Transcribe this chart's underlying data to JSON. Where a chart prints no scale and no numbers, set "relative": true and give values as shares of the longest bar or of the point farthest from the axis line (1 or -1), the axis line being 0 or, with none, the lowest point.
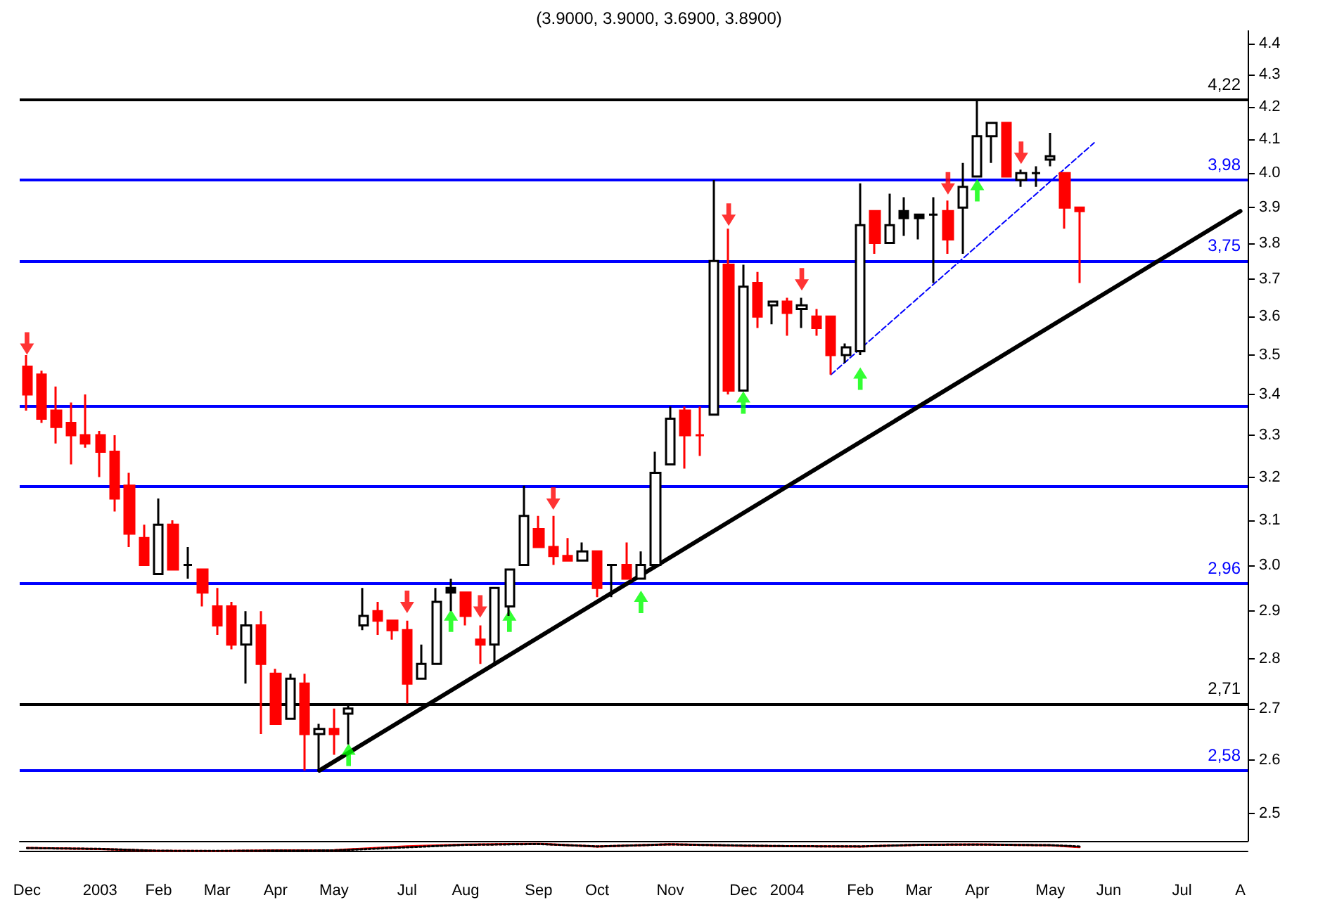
{
  "chart_data": [
    {
      "type": "candlestick",
      "title": "(3.9000, 3.9000, 3.6900, 3.8900)",
      "colors": [
        "#ff0000",
        "#ff0000",
        "#ff0000",
        "#ff0000",
        "#ff0000",
        "#ff0000",
        "#ff0000",
        "#ff0000",
        "#ff0000",
        "#ffffff",
        "#ff0000",
        "#000000",
        "#ff0000",
        "#ff0000",
        "#ff0000",
        "#ffffff",
        "#ff0000",
        "#ff0000",
        "#ffffff",
        "#ff0000",
        "#ffffff",
        "#ff0000",
        "#ffffff",
        "#ffffff",
        "#ff0000",
        "#ff0000",
        "#ff0000",
        "#ffffff",
        "#ffffff",
        "#000000",
        "#ff0000",
        "#ff0000",
        "#ffffff",
        "#ffffff",
        "#ffffff",
        "#ff0000",
        "#ff0000",
        "#ff0000",
        "#ffffff",
        "#ff0000",
        "#000000",
        "#ff0000",
        "#ffffff",
        "#ffffff",
        "#ffffff",
        "#ff0000",
        "#ff0000",
        "#ffffff",
        "#ff0000",
        "#ffffff",
        "#ff0000",
        "#ffffff",
        "#ff0000",
        "#ffffff",
        "#ff0000",
        "#ff0000",
        "#ffffff",
        "#ffffff",
        "#ff0000",
        "#ffffff",
        "#000000",
        "#000000",
        "#000000",
        "#ff0000",
        "#ffffff",
        "#ffffff",
        "#ffffff",
        "#ff0000",
        "#ffffff",
        "#000000",
        "#ffffff",
        "#ff0000",
        "#ff0000",
        null,
        null,
        null,
        null,
        null,
        null,
        null,
        null,
        null,
        null,
        null
      ],
      "categories": [
        "Dec",
        null,
        null,
        null,
        null,
        "2003",
        null,
        null,
        null,
        "Feb",
        null,
        null,
        null,
        "Mar",
        null,
        null,
        null,
        "Apr",
        null,
        null,
        null,
        "May",
        null,
        null,
        null,
        null,
        "Jul",
        null,
        null,
        null,
        "Aug",
        null,
        null,
        null,
        null,
        "Sep",
        null,
        null,
        null,
        "Oct",
        null,
        null,
        null,
        null,
        "Nov",
        null,
        null,
        null,
        null,
        "Dec",
        null,
        null,
        "2004",
        null,
        null,
        null,
        null,
        "Feb",
        null,
        null,
        null,
        "Mar",
        null,
        null,
        null,
        "Apr",
        null,
        null,
        null,
        null,
        "May",
        null,
        null,
        null,
        "Jun",
        null,
        null,
        null,
        null,
        "Jul",
        null,
        null,
        null,
        "A"
      ],
      "ohlc": [
        [
          3.47,
          3.5,
          3.36,
          3.4
        ],
        [
          3.45,
          3.46,
          3.33,
          3.34
        ],
        [
          3.36,
          3.42,
          3.28,
          3.32
        ],
        [
          3.33,
          3.38,
          3.23,
          3.3
        ],
        [
          3.3,
          3.4,
          3.27,
          3.28
        ],
        [
          3.3,
          3.31,
          3.2,
          3.26
        ],
        [
          3.26,
          3.3,
          3.12,
          3.15
        ],
        [
          3.18,
          3.21,
          3.04,
          3.07
        ],
        [
          3.06,
          3.09,
          3.0,
          3.0
        ],
        [
          2.98,
          3.15,
          2.98,
          3.09
        ],
        [
          3.09,
          3.1,
          2.99,
          2.99
        ],
        [
          3.0,
          3.04,
          2.97,
          3.0
        ],
        [
          2.99,
          2.99,
          2.91,
          2.94
        ],
        [
          2.91,
          2.95,
          2.85,
          2.87
        ],
        [
          2.91,
          2.92,
          2.82,
          2.83
        ],
        [
          2.83,
          2.9,
          2.75,
          2.87
        ],
        [
          2.87,
          2.9,
          2.65,
          2.79
        ],
        [
          2.77,
          2.78,
          2.67,
          2.67
        ],
        [
          2.68,
          2.77,
          2.68,
          2.76
        ],
        [
          2.75,
          2.77,
          2.58,
          2.65
        ],
        [
          2.65,
          2.67,
          2.58,
          2.66
        ],
        [
          2.66,
          2.7,
          2.61,
          2.65
        ],
        [
          2.69,
          2.71,
          2.63,
          2.7
        ],
        [
          2.87,
          2.95,
          2.86,
          2.89
        ],
        [
          2.9,
          2.92,
          2.85,
          2.88
        ],
        [
          2.88,
          2.88,
          2.84,
          2.86
        ],
        [
          2.86,
          2.88,
          2.71,
          2.75
        ],
        [
          2.76,
          2.83,
          2.76,
          2.79
        ],
        [
          2.79,
          2.95,
          2.79,
          2.92
        ],
        [
          2.94,
          2.97,
          2.9,
          2.95
        ],
        [
          2.94,
          2.94,
          2.87,
          2.89
        ],
        [
          2.84,
          2.87,
          2.79,
          2.83
        ],
        [
          2.83,
          2.95,
          2.79,
          2.95
        ],
        [
          2.91,
          2.99,
          2.89,
          2.99
        ],
        [
          3.0,
          3.18,
          3.0,
          3.11
        ],
        [
          3.08,
          3.11,
          3.04,
          3.04
        ],
        [
          3.04,
          3.11,
          3.0,
          3.02
        ],
        [
          3.02,
          3.06,
          3.01,
          3.01
        ],
        [
          3.01,
          3.05,
          3.01,
          3.03
        ],
        [
          3.03,
          3.03,
          2.93,
          2.95
        ],
        [
          3.0,
          3.0,
          2.93,
          3.0
        ],
        [
          3.0,
          3.05,
          2.97,
          2.97
        ],
        [
          2.97,
          3.03,
          2.97,
          3.0
        ],
        [
          3.0,
          3.26,
          3.0,
          3.21
        ],
        [
          3.23,
          3.37,
          3.23,
          3.34
        ],
        [
          3.36,
          3.37,
          3.22,
          3.3
        ],
        [
          3.3,
          3.37,
          3.25,
          3.3
        ],
        [
          3.35,
          3.98,
          3.35,
          3.75
        ],
        [
          3.74,
          3.84,
          3.4,
          3.41
        ],
        [
          3.41,
          3.74,
          3.41,
          3.68
        ],
        [
          3.69,
          3.72,
          3.57,
          3.6
        ],
        [
          3.63,
          3.64,
          3.58,
          3.64
        ],
        [
          3.64,
          3.65,
          3.55,
          3.61
        ],
        [
          3.62,
          3.65,
          3.57,
          3.63
        ],
        [
          3.6,
          3.62,
          3.55,
          3.57
        ],
        [
          3.6,
          3.6,
          3.45,
          3.5
        ],
        [
          3.5,
          3.53,
          3.48,
          3.52
        ],
        [
          3.51,
          3.97,
          3.5,
          3.85
        ],
        [
          3.89,
          3.89,
          3.77,
          3.8
        ],
        [
          3.8,
          3.94,
          3.8,
          3.85
        ],
        [
          3.87,
          3.93,
          3.82,
          3.89
        ],
        [
          3.87,
          3.88,
          3.81,
          3.88
        ],
        [
          3.88,
          3.93,
          3.69,
          3.88
        ],
        [
          3.89,
          3.92,
          3.77,
          3.81
        ],
        [
          3.9,
          4.03,
          3.77,
          3.96
        ],
        [
          3.99,
          4.22,
          3.99,
          4.11
        ],
        [
          4.11,
          4.15,
          4.03,
          4.15
        ],
        [
          4.15,
          4.15,
          3.99,
          3.99
        ],
        [
          3.98,
          4.01,
          3.96,
          4.0
        ],
        [
          4.0,
          4.02,
          3.96,
          4.0
        ],
        [
          4.04,
          4.12,
          4.02,
          4.05
        ],
        [
          4.0,
          4.0,
          3.84,
          3.9
        ],
        [
          3.9,
          3.9,
          3.69,
          3.89
        ],
        null,
        null,
        null,
        null,
        null,
        null,
        null,
        null,
        null,
        null,
        null
      ],
      "series": [
        {
          "type": "line",
          "color": "#000000",
          "values": [
            null,
            null,
            null,
            null,
            null,
            null,
            null,
            null,
            null,
            null,
            null,
            null,
            null,
            null,
            null,
            null,
            null,
            null,
            null,
            null,
            2.58,
            null,
            null,
            null,
            null,
            null,
            null,
            null,
            null,
            null,
            null,
            null,
            null,
            null,
            null,
            null,
            null,
            null,
            null,
            null,
            null,
            null,
            null,
            null,
            null,
            null,
            null,
            null,
            null,
            null,
            null,
            null,
            null,
            null,
            null,
            null,
            null,
            null,
            null,
            null,
            null,
            null,
            null,
            null,
            null,
            null,
            null,
            null,
            null,
            null,
            null,
            null,
            null,
            null,
            null,
            null,
            null,
            null,
            null,
            null,
            null,
            null,
            null,
            3.89
          ]
        },
        {
          "type": "line",
          "color": "#0000ff",
          "line_style": "dashed",
          "values": [
            null,
            null,
            null,
            null,
            null,
            null,
            null,
            null,
            null,
            null,
            null,
            null,
            null,
            null,
            null,
            null,
            null,
            null,
            null,
            null,
            null,
            null,
            null,
            null,
            null,
            null,
            null,
            null,
            null,
            null,
            null,
            null,
            null,
            null,
            null,
            null,
            null,
            null,
            null,
            null,
            null,
            null,
            null,
            null,
            null,
            null,
            null,
            null,
            null,
            null,
            null,
            null,
            null,
            null,
            null,
            3.45,
            null,
            null,
            null,
            null,
            null,
            null,
            null,
            null,
            null,
            null,
            null,
            null,
            null,
            null,
            null,
            null,
            null,
            4.09,
            null,
            null,
            null,
            null,
            null,
            null,
            null,
            null,
            null,
            null
          ]
        },
        {
          "type": "scatter",
          "color": "#ff0000",
          "marker": "triangle",
          "values": [
            3.53,
            null,
            null,
            null,
            null,
            null,
            null,
            null,
            null,
            null,
            null,
            null,
            null,
            null,
            null,
            null,
            null,
            null,
            null,
            null,
            null,
            null,
            null,
            null,
            null,
            null,
            2.92,
            null,
            null,
            null,
            null,
            2.91,
            null,
            null,
            null,
            null,
            3.15,
            null,
            null,
            null,
            null,
            null,
            null,
            null,
            null,
            null,
            null,
            null,
            3.88,
            null,
            null,
            null,
            null,
            3.7,
            null,
            null,
            null,
            null,
            null,
            null,
            null,
            null,
            null,
            3.97,
            null,
            null,
            null,
            null,
            4.06,
            null,
            null,
            null,
            null,
            null,
            null,
            null,
            null,
            null,
            null,
            null,
            null,
            null,
            null,
            null
          ]
        },
        {
          "type": "scatter",
          "color": "#00ff00",
          "marker": "triangle",
          "values": [
            null,
            null,
            null,
            null,
            null,
            null,
            null,
            null,
            null,
            null,
            null,
            null,
            null,
            null,
            null,
            null,
            null,
            null,
            null,
            null,
            null,
            null,
            2.61,
            null,
            null,
            null,
            null,
            null,
            null,
            2.88,
            null,
            null,
            null,
            2.88,
            null,
            null,
            null,
            null,
            null,
            null,
            null,
            null,
            2.92,
            null,
            null,
            null,
            null,
            null,
            null,
            3.38,
            null,
            null,
            null,
            null,
            null,
            null,
            null,
            3.44,
            null,
            null,
            null,
            null,
            null,
            null,
            null,
            3.95,
            null,
            null,
            null,
            null,
            null,
            null,
            null,
            null,
            null,
            null,
            null,
            null,
            null,
            null,
            null,
            null,
            null,
            null
          ]
        }
      ],
      "ref_lines": [
        {
          "axis": "y",
          "value": 4.22,
          "label": "4,22",
          "color": "#000000"
        },
        {
          "axis": "y",
          "value": 3.98,
          "label": "3,98",
          "color": "#0000ff"
        },
        {
          "axis": "y",
          "value": 3.75,
          "label": "3,75",
          "color": "#0000ff"
        },
        {
          "axis": "y",
          "value": 3.37,
          "color": "#0000ff"
        },
        {
          "axis": "y",
          "value": 3.18,
          "color": "#0000ff"
        },
        {
          "axis": "y",
          "value": 2.96,
          "label": "2,96",
          "color": "#0000ff"
        },
        {
          "axis": "y",
          "value": 2.71,
          "label": "2,71",
          "color": "#000000"
        },
        {
          "axis": "y",
          "value": 2.58,
          "label": "2,58",
          "color": "#0000ff"
        }
      ],
      "log": "y",
      "ylim": [
        2.45,
        4.44
      ],
      "yticks": [
        2.5,
        2.6,
        2.7,
        2.8,
        2.9,
        {
          "value": 3,
          "label": "3.0"
        },
        3.1,
        3.2,
        3.3,
        3.4,
        3.5,
        3.6,
        3.7,
        3.8,
        3.9,
        {
          "value": 4,
          "label": "4.0"
        },
        4.1,
        4.2,
        4.3,
        4.4
      ],
      "grid": false
    },
    {
      "type": "line",
      "relative": true,
      "categories": [
        null,
        null,
        null,
        null,
        null,
        null,
        null,
        null,
        null,
        null,
        null,
        null,
        null,
        null,
        null,
        null,
        null,
        null,
        null,
        null,
        null,
        null,
        null,
        null,
        null,
        null,
        null,
        null,
        null,
        null,
        null,
        null,
        null,
        null,
        null,
        null,
        null,
        null,
        null,
        null,
        null,
        null,
        null,
        null,
        null,
        null,
        null,
        null,
        null,
        null,
        null,
        null,
        null,
        null,
        null,
        null,
        null,
        null,
        null,
        null,
        null,
        null,
        null,
        null,
        null,
        null,
        null,
        null,
        null,
        null,
        null,
        null,
        null,
        null,
        null,
        null,
        null,
        null,
        null,
        null,
        null,
        null,
        null,
        null
      ],
      "series": [
        {
          "color": "#ff0000",
          "values": [
            0.43,
            null,
            null,
            null,
            null,
            0.28,
            null,
            null,
            null,
            0.02,
            null,
            null,
            null,
            0,
            null,
            null,
            null,
            0.09,
            null,
            null,
            null,
            0.13,
            null,
            null,
            null,
            null,
            0.65,
            null,
            null,
            null,
            0.89,
            null,
            null,
            null,
            null,
            1,
            null,
            null,
            null,
            0.61,
            null,
            null,
            null,
            null,
            0.93,
            null,
            null,
            null,
            null,
            0.72,
            null,
            null,
            0.67,
            null,
            null,
            null,
            null,
            0.61,
            null,
            null,
            null,
            0.85,
            null,
            null,
            null,
            0.91,
            null,
            null,
            null,
            null,
            0.78,
            null,
            0.54,
            null,
            null,
            null,
            null,
            null,
            null,
            null,
            null,
            null,
            null,
            null
          ]
        },
        {
          "color": "#000000",
          "line_style": "dotted",
          "values": [
            0.41,
            null,
            null,
            null,
            null,
            0.3,
            null,
            null,
            null,
            0.04,
            null,
            null,
            null,
            0.02,
            null,
            null,
            null,
            0.07,
            null,
            null,
            null,
            0.09,
            null,
            null,
            null,
            null,
            0.52,
            null,
            null,
            null,
            0.85,
            null,
            null,
            null,
            null,
            0.96,
            null,
            null,
            null,
            0.63,
            null,
            null,
            null,
            null,
            0.91,
            null,
            null,
            null,
            null,
            0.75,
            null,
            null,
            0.67,
            null,
            null,
            null,
            null,
            0.63,
            null,
            null,
            null,
            0.85,
            null,
            null,
            null,
            0.89,
            null,
            null,
            null,
            null,
            0.8,
            null,
            0.63,
            null,
            null,
            null,
            null,
            null,
            null,
            null,
            null,
            null,
            null,
            null
          ]
        }
      ]
    }
  ]
}
